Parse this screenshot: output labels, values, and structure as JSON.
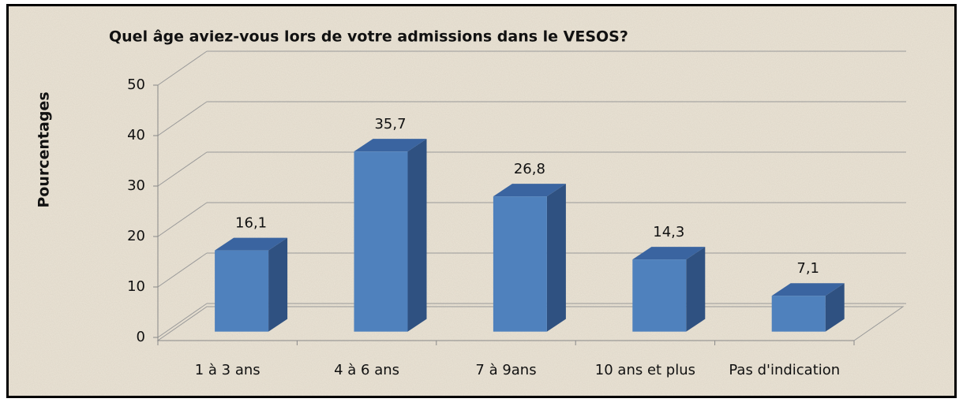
{
  "chart_data": {
    "type": "bar3d",
    "title": "Quel âge aviez-vous lors de votre admissions dans le VESOS?",
    "y_label": "Pourcentages",
    "categories": [
      "1 à 3 ans",
      "4 à 6 ans",
      "7 à 9ans",
      "10 ans et plus",
      "Pas d'indication"
    ],
    "values": [
      16.1,
      35.7,
      26.8,
      14.3,
      7.1
    ],
    "value_labels": [
      "16,1",
      "35,7",
      "26,8",
      "14,3",
      "7,1"
    ],
    "color": "#4f81bd",
    "ylim": [
      0,
      50
    ],
    "yticks": [
      0,
      10,
      20,
      30,
      40,
      50
    ],
    "grid": true
  }
}
